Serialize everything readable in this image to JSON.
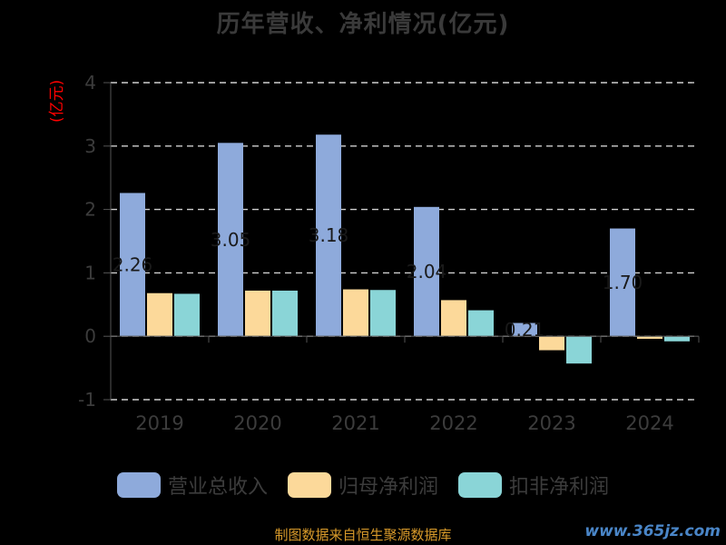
{
  "chart_data": {
    "type": "bar",
    "title": "历年营收、净利情况(亿元)",
    "ylabel": "(亿元)",
    "categories": [
      "2019",
      "2020",
      "2021",
      "2022",
      "2023",
      "2024"
    ],
    "ylim": [
      -1,
      4
    ],
    "yticks": [
      "4",
      "3",
      "2",
      "1",
      "0",
      "-1"
    ],
    "grid": true,
    "legend_position": "bottom",
    "series": [
      {
        "name": "营业总收入",
        "color": "#8eaadb",
        "values": [
          2.26,
          3.05,
          3.18,
          2.04,
          0.21,
          1.7
        ]
      },
      {
        "name": "归母净利润",
        "color": "#fcd99a",
        "values": [
          0.68,
          0.72,
          0.74,
          0.57,
          -0.22,
          -0.04
        ]
      },
      {
        "name": "扣非净利润",
        "color": "#8ad5d7",
        "values": [
          0.67,
          0.72,
          0.73,
          0.41,
          -0.43,
          -0.08
        ]
      }
    ],
    "bar_labels": [
      "2.26",
      "3.05",
      "3.18",
      "2.04",
      "0.21",
      "1.70"
    ]
  },
  "source_text": "制图数据来自恒生聚源数据库",
  "watermark_text": "www.365jz.com"
}
